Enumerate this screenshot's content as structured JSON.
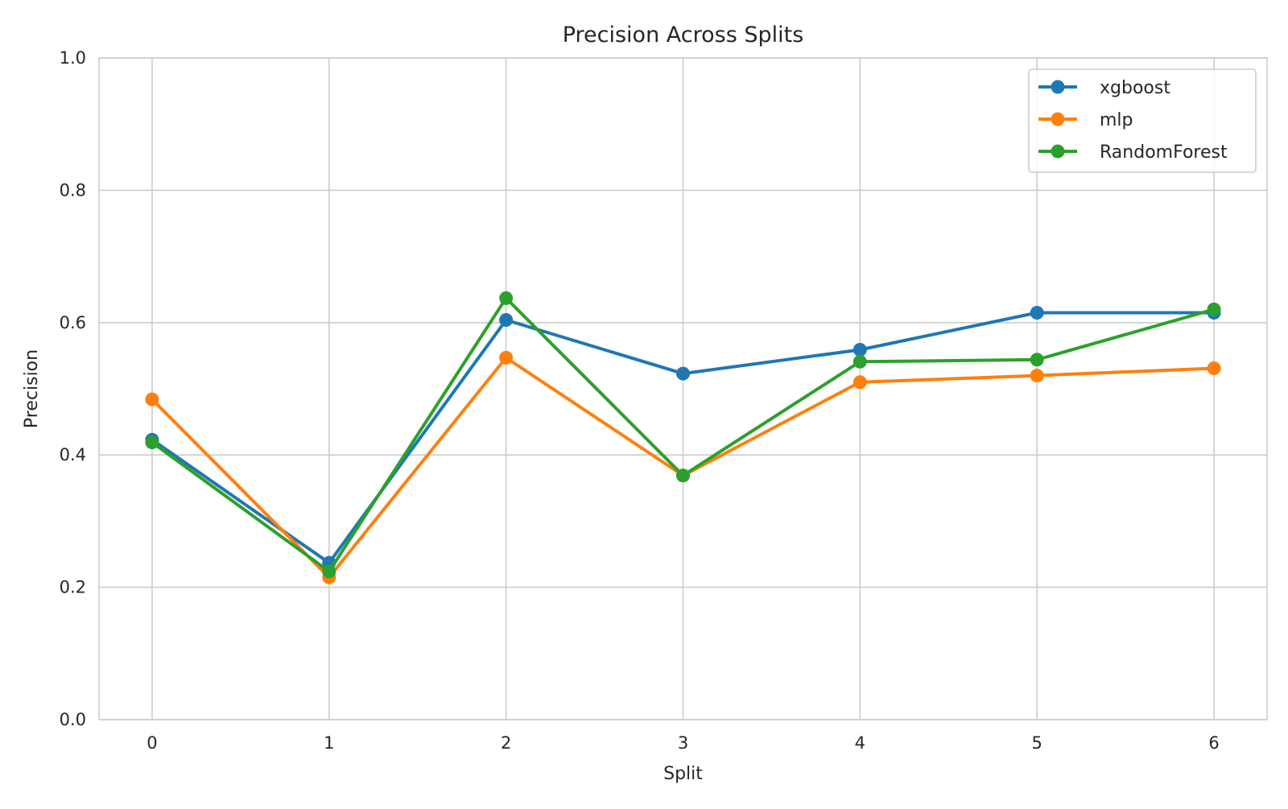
{
  "chart_data": {
    "type": "line",
    "title": "Precision Across Splits",
    "xlabel": "Split",
    "ylabel": "Precision",
    "x": [
      0,
      1,
      2,
      3,
      4,
      5,
      6
    ],
    "xlim": [
      -0.3,
      6.3
    ],
    "ylim": [
      0.0,
      1.0
    ],
    "xticks": [
      "0",
      "1",
      "2",
      "3",
      "4",
      "5",
      "6"
    ],
    "yticks": [
      "0.0",
      "0.2",
      "0.4",
      "0.6",
      "0.8",
      "1.0"
    ],
    "grid": true,
    "legend_position": "top-right",
    "series": [
      {
        "name": "xgboost",
        "color": "#1f77b4",
        "values": [
          0.423,
          0.237,
          0.604,
          0.523,
          0.559,
          0.615,
          0.615
        ]
      },
      {
        "name": "mlp",
        "color": "#ff7f0e",
        "values": [
          0.484,
          0.215,
          0.547,
          0.369,
          0.51,
          0.52,
          0.531
        ]
      },
      {
        "name": "RandomForest",
        "color": "#2ca02c",
        "values": [
          0.419,
          0.224,
          0.637,
          0.369,
          0.541,
          0.544,
          0.62
        ]
      }
    ]
  }
}
